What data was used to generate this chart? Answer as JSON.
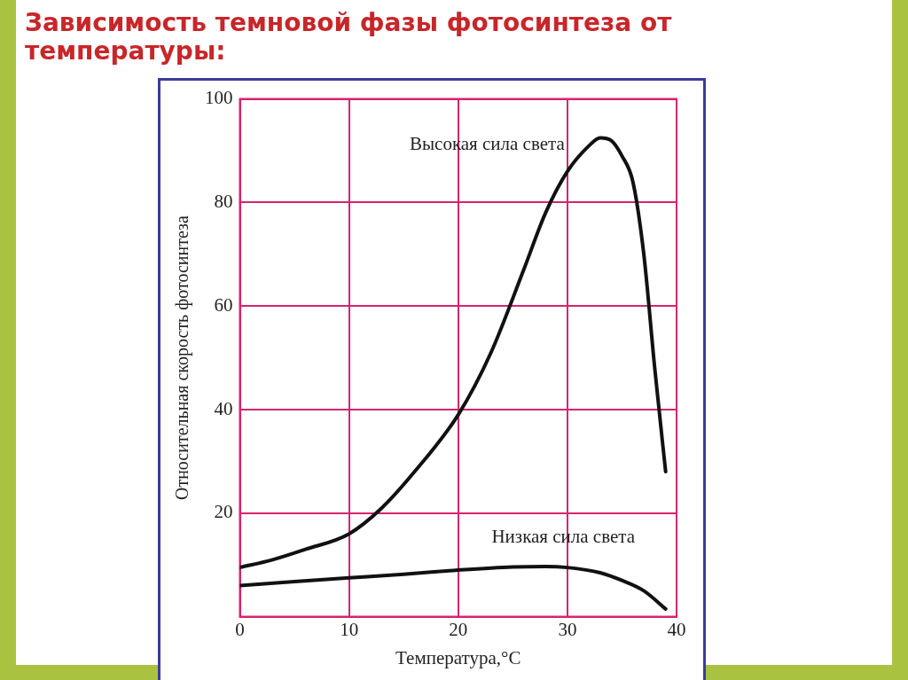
{
  "chart_data": {
    "type": "line",
    "title": "Зависимость темновой фазы фотосинтеза от температуры:",
    "xlabel": "Температура,°C",
    "ylabel": "Относительная скорость фотосинтеза",
    "xlim": [
      0,
      40
    ],
    "xticks": [
      0,
      10,
      20,
      30,
      40
    ],
    "ylim": [
      0,
      100
    ],
    "yticks": [
      {
        "value": 0,
        "label": null
      },
      20,
      40,
      60,
      80,
      100
    ],
    "grid": true,
    "legend": false,
    "marker": "none",
    "line_style": "solid",
    "series": [
      {
        "name": "Высокая сила света",
        "color": "#111111",
        "x": [
          0,
          3,
          6,
          10,
          13,
          16,
          20,
          23,
          26,
          28,
          30,
          32,
          33,
          34,
          35,
          36,
          37,
          38,
          39
        ],
        "values": [
          9.5,
          11,
          13,
          16,
          21,
          28,
          39,
          51,
          67,
          78,
          86,
          91,
          92.5,
          92,
          89,
          84,
          70,
          48,
          28
        ]
      },
      {
        "name": "Низкая сила света",
        "color": "#111111",
        "x": [
          0,
          5,
          10,
          15,
          20,
          25,
          28,
          30,
          33,
          35,
          37,
          39
        ],
        "values": [
          6,
          6.8,
          7.5,
          8.2,
          9,
          9.6,
          9.7,
          9.5,
          8.5,
          7,
          5,
          1.5
        ]
      }
    ]
  }
}
